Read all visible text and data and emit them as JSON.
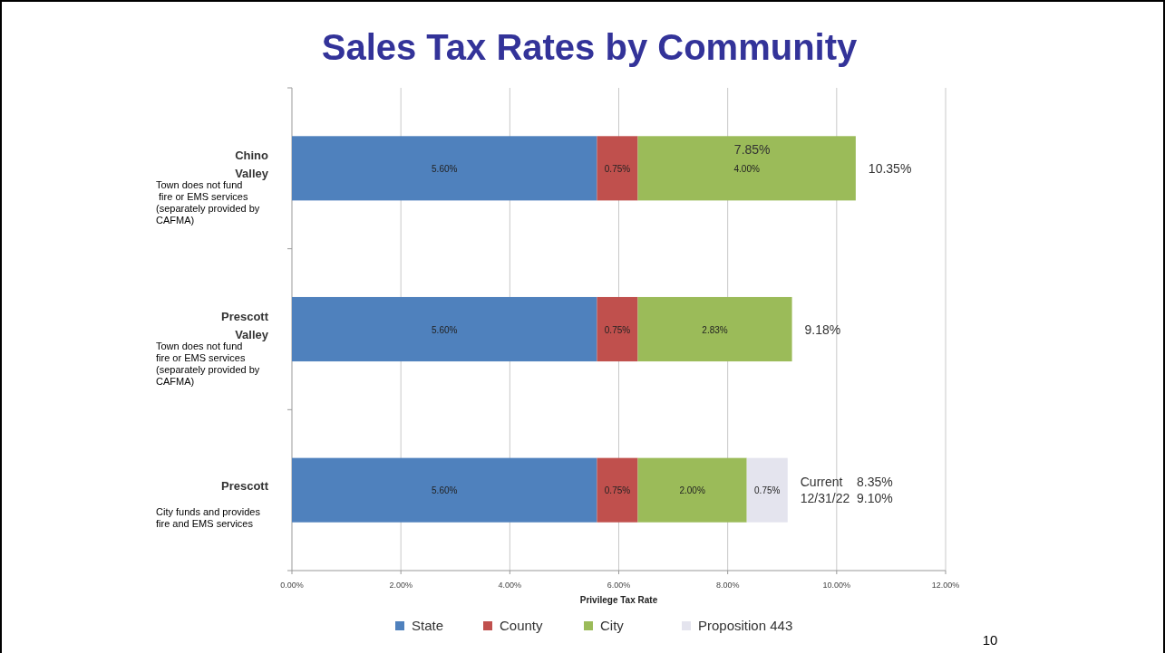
{
  "chart_data": {
    "type": "bar",
    "orientation": "horizontal",
    "stacked": true,
    "title": "Sales Tax Rates by Community",
    "xlabel": "Privilege Tax Rate",
    "categories": [
      "Chino Valley",
      "Prescott Valley",
      "Prescott"
    ],
    "series": [
      {
        "name": "State",
        "color": "#4f81bd",
        "values": [
          5.6,
          5.6,
          5.6
        ],
        "value_labels": [
          "5.60%",
          "5.60%",
          "5.60%"
        ]
      },
      {
        "name": "County",
        "color": "#c0504d",
        "values": [
          0.75,
          0.75,
          0.75
        ],
        "value_labels": [
          "0.75%",
          "0.75%",
          "0.75%"
        ]
      },
      {
        "name": "City",
        "color": "#9bbb59",
        "values": [
          4.0,
          2.83,
          2.0
        ],
        "value_labels": [
          "4.00%",
          "2.83%",
          "2.00%"
        ]
      },
      {
        "name": "Proposition 443",
        "color": "#e4e4ee",
        "values": [
          null,
          null,
          0.75
        ],
        "value_labels": [
          null,
          null,
          "0.75%"
        ]
      }
    ],
    "totals": [
      "10.35%",
      "9.18%",
      "Current    8.35%\n12/31/22  9.10%"
    ],
    "xlim": [
      0,
      12
    ],
    "xticks": [
      {
        "value": 0,
        "label": "0.00%"
      },
      {
        "value": 2,
        "label": "2.00%"
      },
      {
        "value": 4,
        "label": "4.00%"
      },
      {
        "value": 6,
        "label": "6.00%"
      },
      {
        "value": 8,
        "label": "8.00%"
      },
      {
        "value": 10,
        "label": "10.00%"
      },
      {
        "value": 12,
        "label": "12.00%"
      }
    ],
    "grid": "x",
    "legend": "bottom",
    "annotations": [
      "Town does not fund\n fire or EMS services\n(separately provided by\nCAFMA)",
      "Town does not fund\nfire or EMS services\n(separately provided by\nCAFMA)",
      "City funds and provides\nfire and EMS services",
      "7.85%",
      "10"
    ]
  }
}
